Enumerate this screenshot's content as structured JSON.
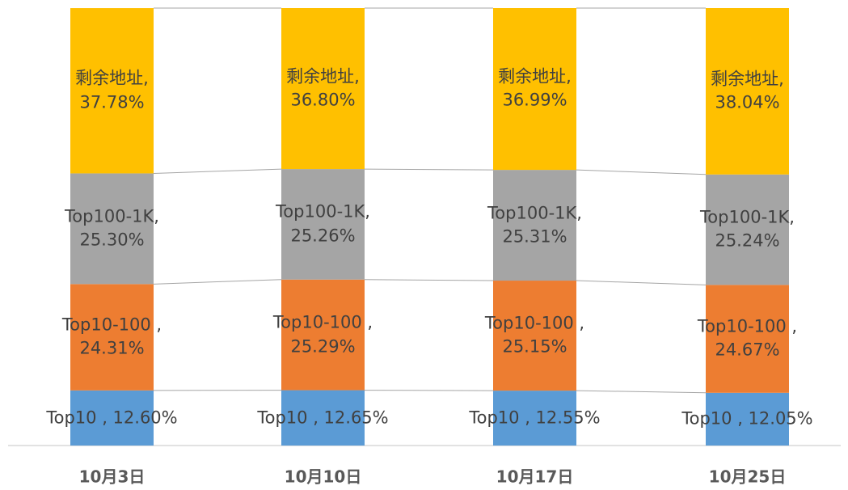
{
  "chart_data": {
    "type": "stacked_bar",
    "categories": [
      "10月3日",
      "10月10日",
      "10月17日",
      "10月25日"
    ],
    "ylim": [
      0,
      100
    ],
    "series": [
      {
        "name": "Top10",
        "color": "#5b9bd5",
        "values": [
          12.6,
          12.65,
          12.55,
          12.05
        ],
        "value_labels": [
          "Top10 , 12.60%",
          "Top10 , 12.65%",
          "Top10 , 12.55%",
          "Top10 , 12.05%"
        ]
      },
      {
        "name": "Top10-100",
        "color": "#ed7d31",
        "values": [
          24.31,
          25.29,
          25.15,
          24.67
        ],
        "value_labels": [
          "Top10-100 ,\n24.31%",
          "Top10-100 ,\n25.29%",
          "Top10-100 ,\n25.15%",
          "Top10-100 ,\n24.67%"
        ]
      },
      {
        "name": "Top100-1K",
        "color": "#a5a5a5",
        "values": [
          25.3,
          25.26,
          25.31,
          25.24
        ],
        "value_labels": [
          "Top100-1K,\n25.30%",
          "Top100-1K,\n25.26%",
          "Top100-1K,\n25.31%",
          "Top100-1K,\n25.24%"
        ]
      },
      {
        "name": "剩余地址",
        "color": "#ffc000",
        "values": [
          37.78,
          36.8,
          36.99,
          38.04
        ],
        "value_labels": [
          "剩余地址,\n37.78%",
          "剩余地址,\n36.80%",
          "剩余地址,\n36.99%",
          "剩余地址,\n38.04%"
        ]
      }
    ]
  }
}
